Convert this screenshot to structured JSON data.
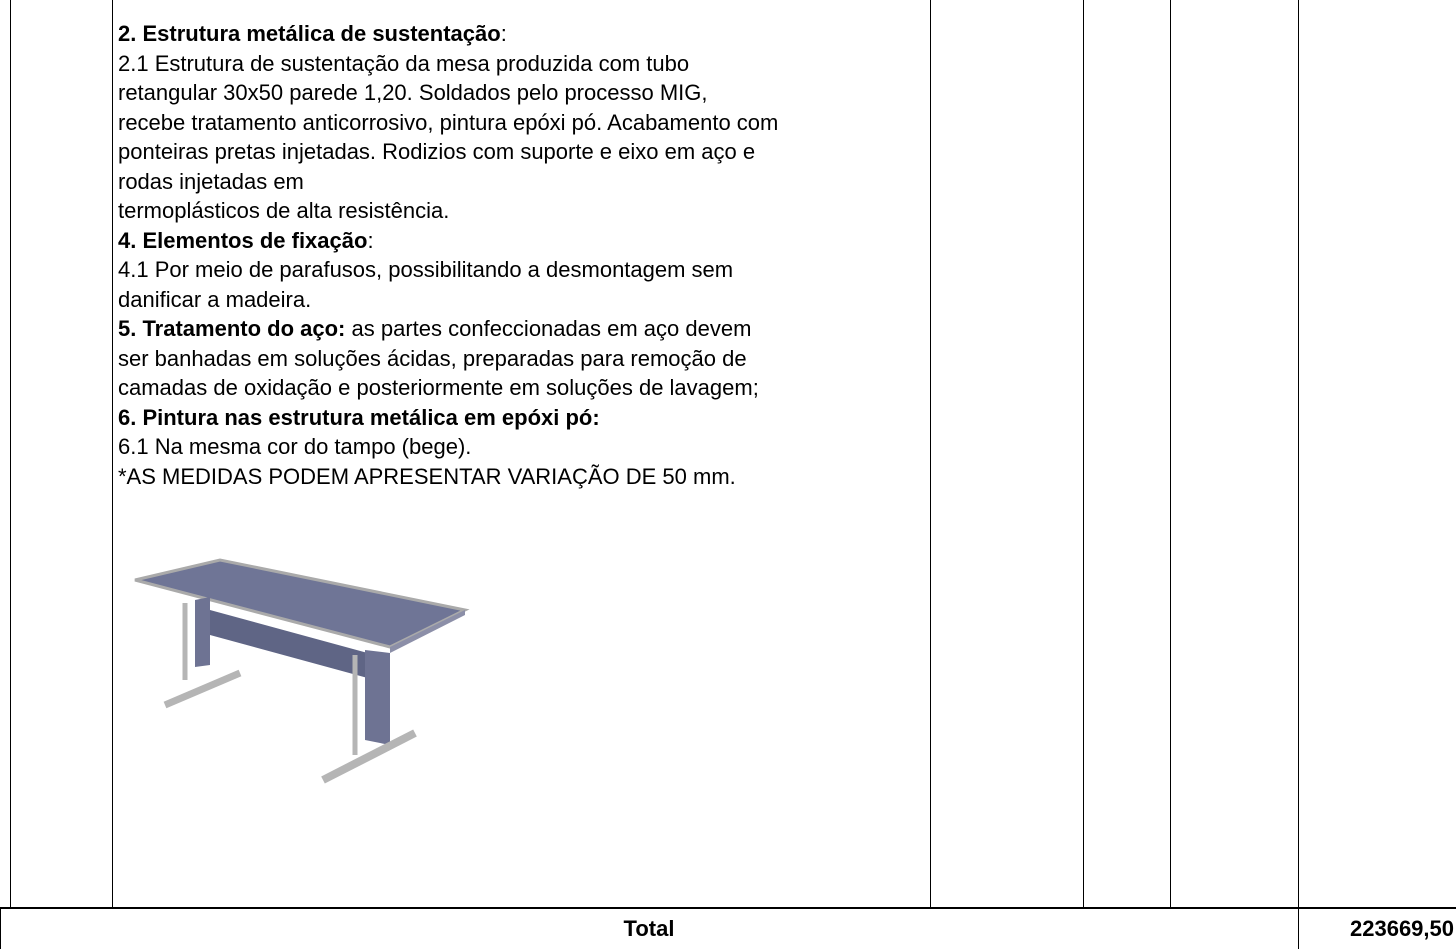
{
  "description": {
    "lines": [
      {
        "bold": "2. Estrutura metálica de sustentação",
        "text": ":"
      },
      {
        "text": "2.1 Estrutura de sustentação da mesa produzida com tubo"
      },
      {
        "text": "retangular 30x50 parede 1,20. Soldados pelo processo MIG,"
      },
      {
        "text": "recebe tratamento anticorrosivo, pintura epóxi pó. Acabamento com"
      },
      {
        "text": "ponteiras pretas injetadas. Rodizios com suporte e eixo em aço e"
      },
      {
        "text": "rodas injetadas em"
      },
      {
        "text": "termoplásticos de alta resistência."
      },
      {
        "bold": "4. Elementos de fixação",
        "text": ":"
      },
      {
        "text": "4.1 Por meio de parafusos, possibilitando a desmontagem sem"
      },
      {
        "text": "danificar a madeira."
      },
      {
        "bold": "5. Tratamento do aço:",
        "text": " as partes confeccionadas em aço devem"
      },
      {
        "text": "ser banhadas em soluções ácidas, preparadas para remoção de"
      },
      {
        "text": "camadas de oxidação e posteriormente em soluções de lavagem;"
      },
      {
        "bold": "6. Pintura nas estrutura metálica em epóxi pó:"
      },
      {
        "text": "6.1 Na mesma cor do tampo (bege)."
      },
      {
        "text": "*AS MEDIDAS PODEM APRESENTAR VARIAÇÃO DE 50 mm."
      }
    ]
  },
  "total": {
    "label": "Total",
    "value": "223669,50"
  }
}
